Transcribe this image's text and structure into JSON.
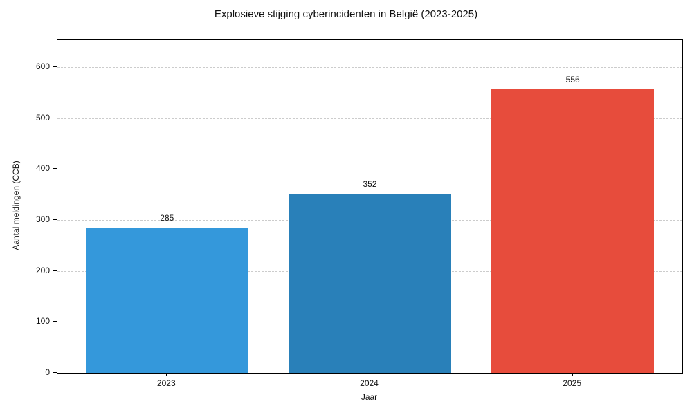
{
  "chart_data": {
    "type": "bar",
    "title": "Explosieve stijging cyberincidenten in België (2023-2025)",
    "xlabel": "Jaar",
    "ylabel": "Aantal meldingen (CCB)",
    "categories": [
      "2023",
      "2024",
      "2025"
    ],
    "values": [
      285,
      352,
      556
    ],
    "bar_labels": [
      "285",
      "352",
      "556"
    ],
    "bar_colors": [
      "#3498db",
      "#2980b9",
      "#e74c3c"
    ],
    "yticks": [
      0,
      100,
      200,
      300,
      400,
      500,
      600
    ],
    "ylim": [
      0,
      653
    ],
    "xlim": [
      -0.54,
      2.54
    ],
    "bar_width_fraction": 0.8,
    "grid": "horizontal-dashed",
    "grid_color": "#cccccc",
    "spine_color": "#000000",
    "background_color": "#ffffff",
    "legend": "none"
  }
}
